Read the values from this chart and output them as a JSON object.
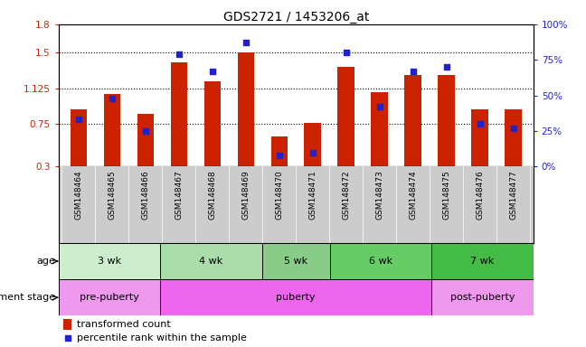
{
  "title": "GDS2721 / 1453206_at",
  "samples": [
    "GSM148464",
    "GSM148465",
    "GSM148466",
    "GSM148467",
    "GSM148468",
    "GSM148469",
    "GSM148470",
    "GSM148471",
    "GSM148472",
    "GSM148473",
    "GSM148474",
    "GSM148475",
    "GSM148476",
    "GSM148477"
  ],
  "bar_values": [
    0.9,
    1.07,
    0.86,
    1.4,
    1.2,
    1.5,
    0.62,
    0.76,
    1.35,
    1.08,
    1.27,
    1.27,
    0.9,
    0.9
  ],
  "percentile_values": [
    33,
    48,
    25,
    79,
    67,
    87,
    8,
    10,
    80,
    42,
    67,
    70,
    30,
    27
  ],
  "bar_bottom": 0.3,
  "ylim_left": [
    0.3,
    1.8
  ],
  "ylim_right": [
    0,
    100
  ],
  "yticks_left": [
    0.3,
    0.75,
    1.125,
    1.5,
    1.8
  ],
  "ytick_labels_left": [
    "0.3",
    "0.75",
    "1.125",
    "1.5",
    "1.8"
  ],
  "yticks_right": [
    0,
    25,
    50,
    75,
    100
  ],
  "ytick_labels_right": [
    "0%",
    "25%",
    "50%",
    "75%",
    "100%"
  ],
  "bar_color": "#cc2200",
  "dot_color": "#2222cc",
  "background_color": "#ffffff",
  "age_groups": [
    {
      "label": "3 wk",
      "start": 0,
      "end": 3,
      "color": "#cceecc"
    },
    {
      "label": "4 wk",
      "start": 3,
      "end": 6,
      "color": "#aaddaa"
    },
    {
      "label": "5 wk",
      "start": 6,
      "end": 8,
      "color": "#88cc88"
    },
    {
      "label": "6 wk",
      "start": 8,
      "end": 11,
      "color": "#66cc66"
    },
    {
      "label": "7 wk",
      "start": 11,
      "end": 14,
      "color": "#44bb44"
    }
  ],
  "dev_groups": [
    {
      "label": "pre-puberty",
      "start": 0,
      "end": 3,
      "color": "#ee88ee"
    },
    {
      "label": "puberty",
      "start": 3,
      "end": 11,
      "color": "#ee66ee"
    },
    {
      "label": "post-puberty",
      "start": 11,
      "end": 14,
      "color": "#ee88ee"
    }
  ],
  "legend_bar_label": "transformed count",
  "legend_dot_label": "percentile rank within the sample",
  "left_axis_color": "#cc2200",
  "right_axis_color": "#2222cc",
  "tick_area_color": "#cccccc"
}
